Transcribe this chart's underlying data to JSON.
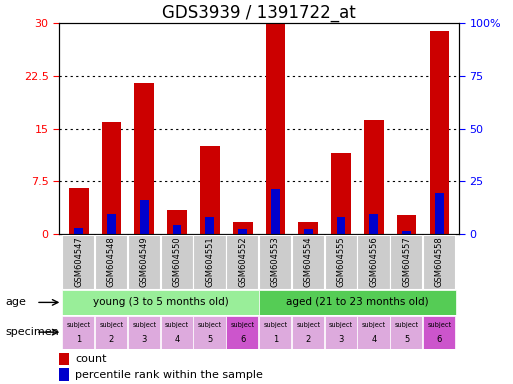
{
  "title": "GDS3939 / 1391722_at",
  "samples": [
    "GSM604547",
    "GSM604548",
    "GSM604549",
    "GSM604550",
    "GSM604551",
    "GSM604552",
    "GSM604553",
    "GSM604554",
    "GSM604555",
    "GSM604556",
    "GSM604557",
    "GSM604558"
  ],
  "count": [
    6.5,
    16.0,
    21.5,
    3.5,
    12.5,
    1.8,
    29.8,
    1.8,
    11.5,
    16.2,
    2.8,
    28.8
  ],
  "percentile": [
    3.0,
    9.5,
    16.0,
    4.5,
    8.0,
    2.5,
    21.5,
    2.5,
    8.0,
    9.5,
    1.5,
    19.5
  ],
  "bar_color": "#cc0000",
  "pct_color": "#0000cc",
  "ylim_left": [
    0,
    30
  ],
  "ylim_right": [
    0,
    100
  ],
  "yticks_left": [
    0,
    7.5,
    15,
    22.5,
    30
  ],
  "yticks_right": [
    0,
    25,
    50,
    75,
    100
  ],
  "ytick_labels_left": [
    "0",
    "7.5",
    "15",
    "22.5",
    "30"
  ],
  "ytick_labels_right": [
    "0",
    "25",
    "50",
    "75",
    "100%"
  ],
  "xticklabel_bg": "#cccccc",
  "age_group_young_color": "#99ee99",
  "age_group_aged_color": "#55cc55",
  "age_young_label": "young (3 to 5 months old)",
  "age_aged_label": "aged (21 to 23 months old)",
  "specimen_colors_light": "#ddaadd",
  "specimen_colors_dark": "#cc55cc",
  "specimen_labels_top": [
    "subject",
    "subject",
    "subject",
    "subject",
    "subject",
    "subject",
    "subject",
    "subject",
    "subject",
    "subject",
    "subject",
    "subject"
  ],
  "specimen_numbers": [
    "1",
    "2",
    "3",
    "4",
    "5",
    "6",
    "1",
    "2",
    "3",
    "4",
    "5",
    "6"
  ],
  "specimen_dark_indices": [
    5,
    11
  ],
  "legend_count_label": "count",
  "legend_pct_label": "percentile rank within the sample",
  "bar_width": 0.6,
  "title_fontsize": 12,
  "tick_fontsize": 8,
  "small_fontsize": 6
}
